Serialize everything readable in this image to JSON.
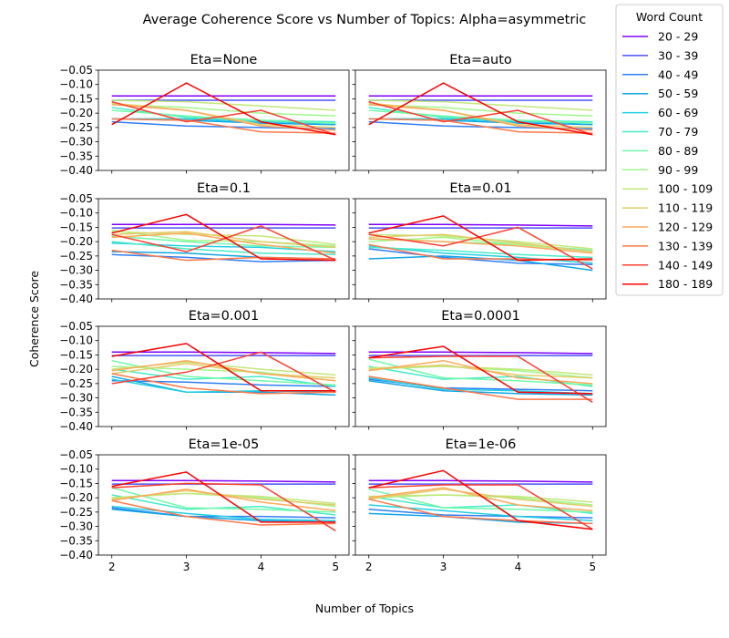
{
  "chart_data": {
    "type": "line",
    "title": "Average Coherence Score vs Number of Topics: Alpha=asymmetric",
    "xlabel": "Number of Topics",
    "ylabel": "Coherence Score",
    "x": [
      2,
      3,
      4,
      5
    ],
    "ylim": [
      -0.4,
      -0.05
    ],
    "yticks": [
      "−0.05",
      "−0.10",
      "−0.15",
      "−0.20",
      "−0.25",
      "−0.30",
      "−0.35",
      "−0.40"
    ],
    "ytick_values": [
      -0.05,
      -0.1,
      -0.15,
      -0.2,
      -0.25,
      -0.3,
      -0.35,
      -0.4
    ],
    "xticks": [
      "2",
      "3",
      "4",
      "5"
    ],
    "legend": {
      "title": "Word Count",
      "entries": [
        {
          "label": "20 - 29",
          "color": "#8000ff"
        },
        {
          "label": "30 - 39",
          "color": "#4c50fc"
        },
        {
          "label": "40 - 49",
          "color": "#2f7ff6"
        },
        {
          "label": "50 - 59",
          "color": "#0ea6e6"
        },
        {
          "label": "60 - 69",
          "color": "#21cfe3"
        },
        {
          "label": "70 - 79",
          "color": "#45ecc8"
        },
        {
          "label": "80 - 89",
          "color": "#70faa7"
        },
        {
          "label": "90 - 99",
          "color": "#a2f78b"
        },
        {
          "label": "100 - 109",
          "color": "#c2e87a"
        },
        {
          "label": "110 - 119",
          "color": "#e1cd6a"
        },
        {
          "label": "120 - 129",
          "color": "#ffa95a"
        },
        {
          "label": "130 - 139",
          "color": "#ff7848"
        },
        {
          "label": "140 - 149",
          "color": "#ff4030"
        },
        {
          "label": "180 - 189",
          "color": "#ff0000"
        }
      ]
    },
    "panels": [
      {
        "title": "Eta=None",
        "series": [
          [
            -0.14,
            -0.14,
            -0.14,
            -0.14
          ],
          [
            -0.155,
            -0.155,
            -0.155,
            -0.155
          ],
          [
            -0.23,
            -0.245,
            -0.25,
            -0.255
          ],
          [
            -0.22,
            -0.225,
            -0.235,
            -0.24
          ],
          [
            -0.22,
            -0.22,
            -0.23,
            -0.235
          ],
          [
            -0.18,
            -0.215,
            -0.225,
            -0.23
          ],
          [
            -0.19,
            -0.21,
            -0.225,
            -0.235
          ],
          [
            -0.17,
            -0.18,
            -0.2,
            -0.21
          ],
          [
            -0.155,
            -0.16,
            -0.175,
            -0.19
          ],
          [
            -0.165,
            -0.19,
            -0.24,
            -0.25
          ],
          [
            -0.17,
            -0.19,
            -0.245,
            -0.26
          ],
          [
            -0.22,
            -0.225,
            -0.265,
            -0.27
          ],
          [
            -0.16,
            -0.23,
            -0.19,
            -0.275
          ],
          [
            -0.24,
            -0.095,
            -0.23,
            -0.275
          ]
        ]
      },
      {
        "title": "Eta=auto",
        "series": [
          [
            -0.14,
            -0.14,
            -0.14,
            -0.14
          ],
          [
            -0.155,
            -0.155,
            -0.155,
            -0.155
          ],
          [
            -0.23,
            -0.245,
            -0.25,
            -0.255
          ],
          [
            -0.22,
            -0.225,
            -0.235,
            -0.24
          ],
          [
            -0.22,
            -0.22,
            -0.23,
            -0.235
          ],
          [
            -0.18,
            -0.215,
            -0.225,
            -0.23
          ],
          [
            -0.19,
            -0.21,
            -0.225,
            -0.235
          ],
          [
            -0.17,
            -0.18,
            -0.2,
            -0.21
          ],
          [
            -0.155,
            -0.16,
            -0.175,
            -0.19
          ],
          [
            -0.165,
            -0.19,
            -0.24,
            -0.25
          ],
          [
            -0.17,
            -0.19,
            -0.245,
            -0.26
          ],
          [
            -0.22,
            -0.225,
            -0.265,
            -0.27
          ],
          [
            -0.16,
            -0.23,
            -0.19,
            -0.275
          ],
          [
            -0.24,
            -0.095,
            -0.23,
            -0.275
          ]
        ]
      },
      {
        "title": "Eta=0.1",
        "series": [
          [
            -0.14,
            -0.14,
            -0.14,
            -0.142
          ],
          [
            -0.152,
            -0.152,
            -0.152,
            -0.152
          ],
          [
            -0.245,
            -0.255,
            -0.27,
            -0.265
          ],
          [
            -0.235,
            -0.24,
            -0.255,
            -0.26
          ],
          [
            -0.205,
            -0.215,
            -0.22,
            -0.235
          ],
          [
            -0.2,
            -0.225,
            -0.24,
            -0.245
          ],
          [
            -0.18,
            -0.2,
            -0.215,
            -0.22
          ],
          [
            -0.16,
            -0.195,
            -0.2,
            -0.215
          ],
          [
            -0.165,
            -0.175,
            -0.18,
            -0.21
          ],
          [
            -0.175,
            -0.165,
            -0.2,
            -0.22
          ],
          [
            -0.185,
            -0.17,
            -0.21,
            -0.24
          ],
          [
            -0.23,
            -0.265,
            -0.255,
            -0.26
          ],
          [
            -0.175,
            -0.235,
            -0.145,
            -0.265
          ],
          [
            -0.17,
            -0.105,
            -0.26,
            -0.265
          ]
        ]
      },
      {
        "title": "Eta=0.01",
        "series": [
          [
            -0.14,
            -0.14,
            -0.142,
            -0.145
          ],
          [
            -0.152,
            -0.152,
            -0.152,
            -0.152
          ],
          [
            -0.225,
            -0.255,
            -0.275,
            -0.28
          ],
          [
            -0.26,
            -0.25,
            -0.265,
            -0.3
          ],
          [
            -0.215,
            -0.24,
            -0.255,
            -0.275
          ],
          [
            -0.22,
            -0.23,
            -0.245,
            -0.255
          ],
          [
            -0.19,
            -0.2,
            -0.21,
            -0.23
          ],
          [
            -0.2,
            -0.185,
            -0.21,
            -0.235
          ],
          [
            -0.175,
            -0.18,
            -0.2,
            -0.225
          ],
          [
            -0.185,
            -0.175,
            -0.205,
            -0.235
          ],
          [
            -0.19,
            -0.2,
            -0.215,
            -0.24
          ],
          [
            -0.21,
            -0.26,
            -0.26,
            -0.265
          ],
          [
            -0.175,
            -0.215,
            -0.15,
            -0.295
          ],
          [
            -0.17,
            -0.11,
            -0.265,
            -0.26
          ]
        ]
      },
      {
        "title": "Eta=0.001",
        "series": [
          [
            -0.14,
            -0.14,
            -0.142,
            -0.145
          ],
          [
            -0.152,
            -0.152,
            -0.152,
            -0.152
          ],
          [
            -0.24,
            -0.245,
            -0.255,
            -0.26
          ],
          [
            -0.225,
            -0.28,
            -0.28,
            -0.29
          ],
          [
            -0.235,
            -0.28,
            -0.275,
            -0.28
          ],
          [
            -0.2,
            -0.235,
            -0.225,
            -0.26
          ],
          [
            -0.17,
            -0.225,
            -0.24,
            -0.255
          ],
          [
            -0.19,
            -0.2,
            -0.21,
            -0.24
          ],
          [
            -0.2,
            -0.175,
            -0.2,
            -0.22
          ],
          [
            -0.215,
            -0.18,
            -0.215,
            -0.23
          ],
          [
            -0.205,
            -0.17,
            -0.215,
            -0.24
          ],
          [
            -0.215,
            -0.265,
            -0.285,
            -0.28
          ],
          [
            -0.25,
            -0.21,
            -0.14,
            -0.28
          ],
          [
            -0.155,
            -0.11,
            -0.275,
            -0.275
          ]
        ]
      },
      {
        "title": "Eta=0.0001",
        "series": [
          [
            -0.14,
            -0.14,
            -0.142,
            -0.145
          ],
          [
            -0.152,
            -0.152,
            -0.152,
            -0.152
          ],
          [
            -0.235,
            -0.265,
            -0.27,
            -0.275
          ],
          [
            -0.24,
            -0.275,
            -0.285,
            -0.29
          ],
          [
            -0.23,
            -0.27,
            -0.275,
            -0.285
          ],
          [
            -0.19,
            -0.235,
            -0.225,
            -0.26
          ],
          [
            -0.165,
            -0.23,
            -0.24,
            -0.255
          ],
          [
            -0.2,
            -0.19,
            -0.205,
            -0.23
          ],
          [
            -0.195,
            -0.19,
            -0.2,
            -0.22
          ],
          [
            -0.2,
            -0.185,
            -0.22,
            -0.23
          ],
          [
            -0.205,
            -0.17,
            -0.23,
            -0.25
          ],
          [
            -0.225,
            -0.265,
            -0.305,
            -0.305
          ],
          [
            -0.16,
            -0.155,
            -0.155,
            -0.315
          ],
          [
            -0.16,
            -0.12,
            -0.28,
            -0.285
          ]
        ]
      },
      {
        "title": "Eta=1e-05",
        "series": [
          [
            -0.14,
            -0.14,
            -0.142,
            -0.145
          ],
          [
            -0.152,
            -0.152,
            -0.152,
            -0.152
          ],
          [
            -0.235,
            -0.265,
            -0.265,
            -0.27
          ],
          [
            -0.24,
            -0.265,
            -0.28,
            -0.285
          ],
          [
            -0.23,
            -0.255,
            -0.275,
            -0.28
          ],
          [
            -0.19,
            -0.24,
            -0.23,
            -0.26
          ],
          [
            -0.165,
            -0.235,
            -0.24,
            -0.25
          ],
          [
            -0.2,
            -0.185,
            -0.2,
            -0.23
          ],
          [
            -0.2,
            -0.185,
            -0.195,
            -0.22
          ],
          [
            -0.205,
            -0.175,
            -0.205,
            -0.225
          ],
          [
            -0.21,
            -0.17,
            -0.215,
            -0.245
          ],
          [
            -0.21,
            -0.265,
            -0.295,
            -0.29
          ],
          [
            -0.165,
            -0.15,
            -0.155,
            -0.315
          ],
          [
            -0.16,
            -0.11,
            -0.285,
            -0.285
          ]
        ]
      },
      {
        "title": "Eta=1e-06",
        "series": [
          [
            -0.14,
            -0.14,
            -0.142,
            -0.145
          ],
          [
            -0.152,
            -0.152,
            -0.152,
            -0.152
          ],
          [
            -0.24,
            -0.26,
            -0.265,
            -0.27
          ],
          [
            -0.255,
            -0.265,
            -0.285,
            -0.29
          ],
          [
            -0.225,
            -0.245,
            -0.265,
            -0.28
          ],
          [
            -0.195,
            -0.235,
            -0.225,
            -0.255
          ],
          [
            -0.17,
            -0.235,
            -0.24,
            -0.25
          ],
          [
            -0.2,
            -0.19,
            -0.2,
            -0.225
          ],
          [
            -0.195,
            -0.19,
            -0.195,
            -0.215
          ],
          [
            -0.205,
            -0.17,
            -0.205,
            -0.23
          ],
          [
            -0.2,
            -0.165,
            -0.225,
            -0.245
          ],
          [
            -0.205,
            -0.265,
            -0.28,
            -0.29
          ],
          [
            -0.165,
            -0.155,
            -0.155,
            -0.31
          ],
          [
            -0.165,
            -0.105,
            -0.28,
            -0.31
          ]
        ]
      }
    ]
  }
}
